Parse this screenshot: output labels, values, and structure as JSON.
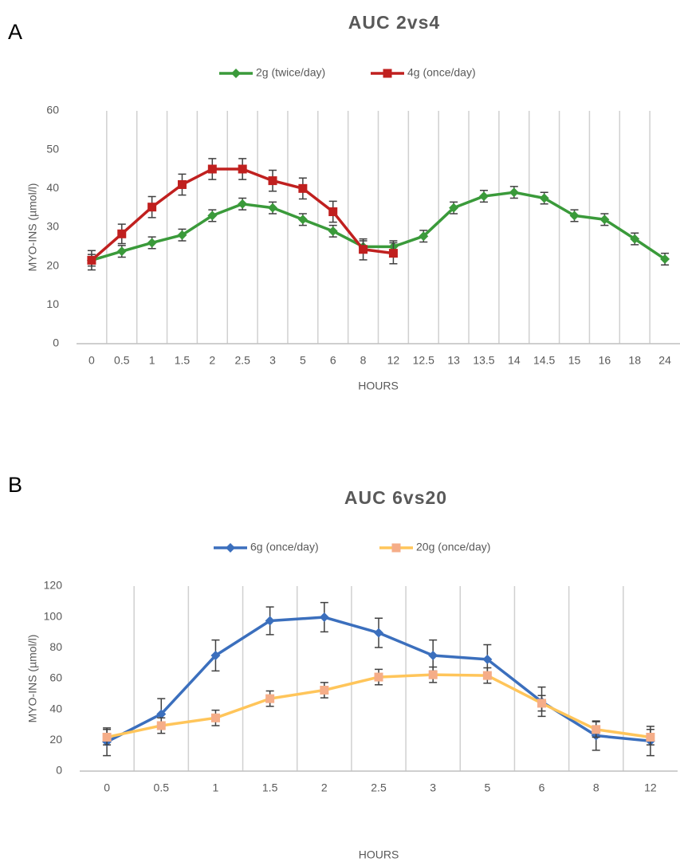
{
  "chart_data": [
    {
      "type": "line",
      "panel": "A",
      "title": "AUC 2vs4",
      "xlabel": "HOURS",
      "ylabel": "MYO-INS (µmol/l)",
      "categories": [
        "0",
        "0.5",
        "1",
        "1.5",
        "2",
        "2.5",
        "3",
        "5",
        "6",
        "8",
        "12",
        "12.5",
        "13",
        "13.5",
        "14",
        "14.5",
        "15",
        "16",
        "18",
        "24"
      ],
      "ylim": [
        0,
        60
      ],
      "yticks": [
        0,
        10,
        20,
        30,
        40,
        50,
        60
      ],
      "grid": "x",
      "series": [
        {
          "name": "2g (twice/day)",
          "color": "#3a9a3a",
          "marker": "diamond",
          "marker_color": "#3a9a3a",
          "values": [
            21.5,
            23.8,
            26,
            28,
            33,
            36,
            35,
            32,
            29,
            25,
            25,
            27.7,
            35,
            38,
            39,
            37.5,
            33,
            32,
            27,
            21.8
          ],
          "errors": [
            1.5,
            1.5,
            1.5,
            1.5,
            1.5,
            1.5,
            1.5,
            1.5,
            1.5,
            1.5,
            1.5,
            1.5,
            1.5,
            1.5,
            1.5,
            1.5,
            1.5,
            1.5,
            1.5,
            1.5
          ]
        },
        {
          "name": "4g (once/day)",
          "color": "#c0201f",
          "marker": "square",
          "marker_color": "#c0201f",
          "values": [
            21.5,
            28.3,
            35.2,
            41,
            45,
            45,
            42,
            40,
            34,
            24.3,
            23.3,
            null,
            null,
            null,
            null,
            null,
            null,
            null,
            null,
            null
          ],
          "errors": [
            2.5,
            2.5,
            2.7,
            2.7,
            2.7,
            2.7,
            2.7,
            2.7,
            2.7,
            2.7,
            2.7,
            null,
            null,
            null,
            null,
            null,
            null,
            null,
            null,
            null
          ]
        }
      ]
    },
    {
      "type": "line",
      "panel": "B",
      "title": "AUC 6vs20",
      "xlabel": "HOURS",
      "ylabel": "MYO-INS (µmol/l)",
      "categories": [
        "0",
        "0.5",
        "1",
        "1.5",
        "2",
        "2.5",
        "3",
        "5",
        "6",
        "8",
        "12"
      ],
      "ylim": [
        0,
        120
      ],
      "yticks": [
        0,
        20,
        40,
        60,
        80,
        100,
        120
      ],
      "grid": "x",
      "series": [
        {
          "name": "6g (once/day)",
          "color": "#3b6fbd",
          "marker": "diamond",
          "marker_color": "#3b6fbd",
          "values": [
            19,
            37,
            75,
            97.5,
            99.8,
            89.7,
            75,
            72.5,
            45,
            23,
            19.5
          ],
          "errors": [
            9,
            10,
            10,
            9,
            9.5,
            9.5,
            10,
            9.5,
            9.5,
            9.5,
            9.5
          ]
        },
        {
          "name": "20g (once/day)",
          "color": "#ffc55a",
          "marker": "square",
          "marker_color": "#f5ad88",
          "values": [
            22,
            29.5,
            34.5,
            47,
            52.5,
            61,
            62.5,
            62,
            44,
            27,
            22
          ],
          "errors": [
            5,
            5,
            5,
            5,
            5,
            5,
            5,
            5,
            5,
            5,
            5
          ]
        }
      ]
    }
  ]
}
